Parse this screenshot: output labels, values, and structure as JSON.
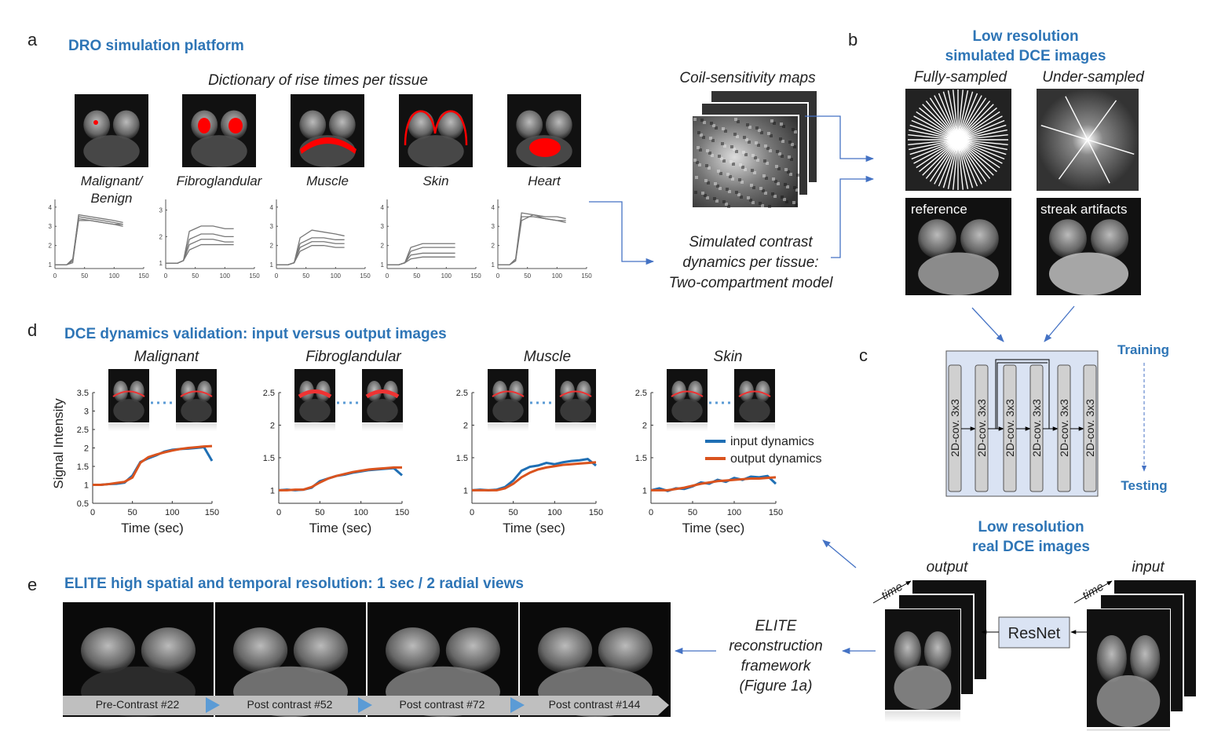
{
  "a": {
    "letter": "a",
    "title": "DRO simulation platform",
    "subtitle": "Dictionary of rise times per tissue",
    "coil_title": "Coil-sensitivity maps",
    "model_lines": [
      "Simulated contrast",
      "dynamics per tissue:",
      "Two-compartment model"
    ],
    "plots": {
      "x": [
        0,
        20,
        30,
        40,
        60,
        80,
        100,
        115
      ],
      "xlim": [
        0,
        150
      ],
      "xticks": [
        0,
        50,
        100,
        150
      ],
      "items": [
        {
          "label": [
            "Malignant/",
            "Benign"
          ],
          "ylim": [
            0.8,
            4.4
          ],
          "yticks": [
            1,
            2,
            3,
            4
          ],
          "curves": [
            [
              1,
              1,
              1.2,
              3.6,
              3.5,
              3.4,
              3.3,
              3.2
            ],
            [
              1,
              1,
              1.3,
              3.5,
              3.4,
              3.3,
              3.2,
              3.1
            ],
            [
              1,
              1,
              1.1,
              3.4,
              3.3,
              3.2,
              3.1,
              3.0
            ],
            [
              1,
              1,
              1.2,
              3.3,
              3.3,
              3.2,
              3.1,
              3.1
            ]
          ]
        },
        {
          "label": [
            "Fibroglandular"
          ],
          "ylim": [
            0.8,
            3.4
          ],
          "yticks": [
            1,
            2,
            3
          ],
          "curves": [
            [
              1,
              1,
              1.1,
              2.2,
              2.4,
              2.4,
              2.3,
              2.3
            ],
            [
              1,
              1,
              1.1,
              1.9,
              2.1,
              2.1,
              2.0,
              2.0
            ],
            [
              1,
              1,
              1.1,
              1.7,
              1.9,
              1.9,
              1.8,
              1.8
            ],
            [
              1,
              1,
              1.1,
              1.5,
              1.7,
              1.7,
              1.7,
              1.7
            ]
          ]
        },
        {
          "label": [
            "Muscle"
          ],
          "ylim": [
            0.8,
            4.4
          ],
          "yticks": [
            1,
            2,
            3,
            4
          ],
          "curves": [
            [
              1,
              1,
              1.1,
              2.4,
              2.8,
              2.7,
              2.6,
              2.5
            ],
            [
              1,
              1,
              1.1,
              2.1,
              2.4,
              2.4,
              2.3,
              2.3
            ],
            [
              1,
              1,
              1.1,
              1.9,
              2.2,
              2.2,
              2.1,
              2.1
            ],
            [
              1,
              1,
              1.1,
              1.7,
              2.0,
              2.0,
              1.9,
              1.9
            ]
          ]
        },
        {
          "label": [
            "Skin"
          ],
          "ylim": [
            0.8,
            4.4
          ],
          "yticks": [
            1,
            2,
            3,
            4
          ],
          "curves": [
            [
              1,
              1,
              1.1,
              1.9,
              2.1,
              2.1,
              2.1,
              2.1
            ],
            [
              1,
              1,
              1.1,
              1.7,
              1.9,
              1.9,
              1.9,
              1.9
            ],
            [
              1,
              1,
              1.1,
              1.5,
              1.6,
              1.6,
              1.6,
              1.6
            ],
            [
              1,
              1,
              1.1,
              1.3,
              1.4,
              1.4,
              1.4,
              1.4
            ]
          ]
        },
        {
          "label": [
            "Heart"
          ],
          "ylim": [
            0.8,
            4.4
          ],
          "yticks": [
            1,
            2,
            3,
            4
          ],
          "curves": [
            [
              1,
              1,
              1.3,
              3.7,
              3.6,
              3.5,
              3.5,
              3.4
            ],
            [
              1,
              1,
              1.2,
              3.5,
              3.5,
              3.4,
              3.3,
              3.3
            ],
            [
              1,
              1,
              1.2,
              3.3,
              3.6,
              3.4,
              3.3,
              3.2
            ]
          ]
        }
      ]
    }
  },
  "b": {
    "letter": "b",
    "title_lines": [
      "Low resolution",
      "simulated DCE images"
    ],
    "fully": "Fully-sampled",
    "under": "Under-sampled",
    "reference": "reference",
    "streak": "streak artifacts"
  },
  "c": {
    "letter": "c",
    "layers": [
      "2D-cov. 3x3",
      "2D-cov. 3x3",
      "2D-cov. 3x3",
      "2D-cov. 3x3",
      "2D-cov. 3x3",
      "2D-cov. 3x3"
    ],
    "training": "Training",
    "testing": "Testing",
    "real_title_lines": [
      "Low resolution",
      "real DCE images"
    ],
    "output": "output",
    "input": "input",
    "time": "time",
    "resnet": "ResNet",
    "elite_lines": [
      "ELITE",
      "reconstruction",
      "framework",
      "(Figure 1a)"
    ]
  },
  "d": {
    "letter": "d",
    "title": "DCE dynamics validation: input versus output images",
    "ylabel": "Signal Intensity",
    "xlabel": "Time (sec)",
    "series_names": [
      "input dynamics",
      "output dynamics"
    ],
    "colors": [
      "#1f6fb4",
      "#d9531e"
    ],
    "x": [
      0,
      10,
      20,
      30,
      40,
      50,
      60,
      70,
      80,
      90,
      100,
      110,
      120,
      130,
      140,
      150
    ],
    "xlim": [
      0,
      150
    ],
    "xticks": [
      0,
      50,
      100,
      150
    ],
    "plots": [
      {
        "title": "Malignant",
        "ylim": [
          0.5,
          3.5
        ],
        "yticks": [
          0.5,
          1,
          1.5,
          2,
          2.5,
          3,
          3.5
        ],
        "input": [
          1,
          1,
          1.02,
          1.03,
          1.06,
          1.25,
          1.62,
          1.72,
          1.8,
          1.9,
          1.95,
          1.97,
          1.98,
          2.0,
          2.02,
          1.65
        ],
        "output": [
          1,
          1,
          1.02,
          1.05,
          1.08,
          1.2,
          1.6,
          1.75,
          1.82,
          1.88,
          1.93,
          1.97,
          2.0,
          2.02,
          2.04,
          2.05
        ]
      },
      {
        "title": "Fibroglandular",
        "ylim": [
          0.8,
          2.5
        ],
        "yticks": [
          1,
          1.5,
          2,
          2.5
        ],
        "input": [
          1,
          1.01,
          1.0,
          1.01,
          1.04,
          1.14,
          1.18,
          1.22,
          1.24,
          1.27,
          1.29,
          1.31,
          1.32,
          1.33,
          1.34,
          1.23
        ],
        "output": [
          1,
          1,
          1.01,
          1.01,
          1.05,
          1.12,
          1.18,
          1.22,
          1.25,
          1.28,
          1.3,
          1.32,
          1.33,
          1.34,
          1.35,
          1.35
        ]
      },
      {
        "title": "Muscle",
        "ylim": [
          0.8,
          2.5
        ],
        "yticks": [
          1,
          1.5,
          2,
          2.5
        ],
        "input": [
          1,
          1.01,
          1,
          1.01,
          1.05,
          1.15,
          1.3,
          1.36,
          1.38,
          1.42,
          1.4,
          1.43,
          1.45,
          1.46,
          1.48,
          1.38
        ],
        "output": [
          1,
          1,
          1,
          1,
          1.03,
          1.1,
          1.2,
          1.27,
          1.32,
          1.35,
          1.37,
          1.39,
          1.4,
          1.41,
          1.42,
          1.43
        ]
      },
      {
        "title": "Skin",
        "ylim": [
          0.8,
          2.5
        ],
        "yticks": [
          1,
          1.5,
          2,
          2.5
        ],
        "input": [
          1,
          1.03,
          0.99,
          1.03,
          1.02,
          1.06,
          1.12,
          1.1,
          1.16,
          1.13,
          1.19,
          1.16,
          1.21,
          1.2,
          1.22,
          1.1
        ],
        "output": [
          1,
          1,
          1,
          1.02,
          1.04,
          1.07,
          1.1,
          1.12,
          1.14,
          1.15,
          1.16,
          1.17,
          1.18,
          1.18,
          1.19,
          1.2
        ]
      }
    ]
  },
  "e": {
    "letter": "e",
    "title": "ELITE high spatial and temporal resolution: 1 sec / 2 radial views",
    "frames": [
      "Pre-Contrast #22",
      "Post contrast #52",
      "Post contrast #72",
      "Post contrast #144"
    ]
  }
}
